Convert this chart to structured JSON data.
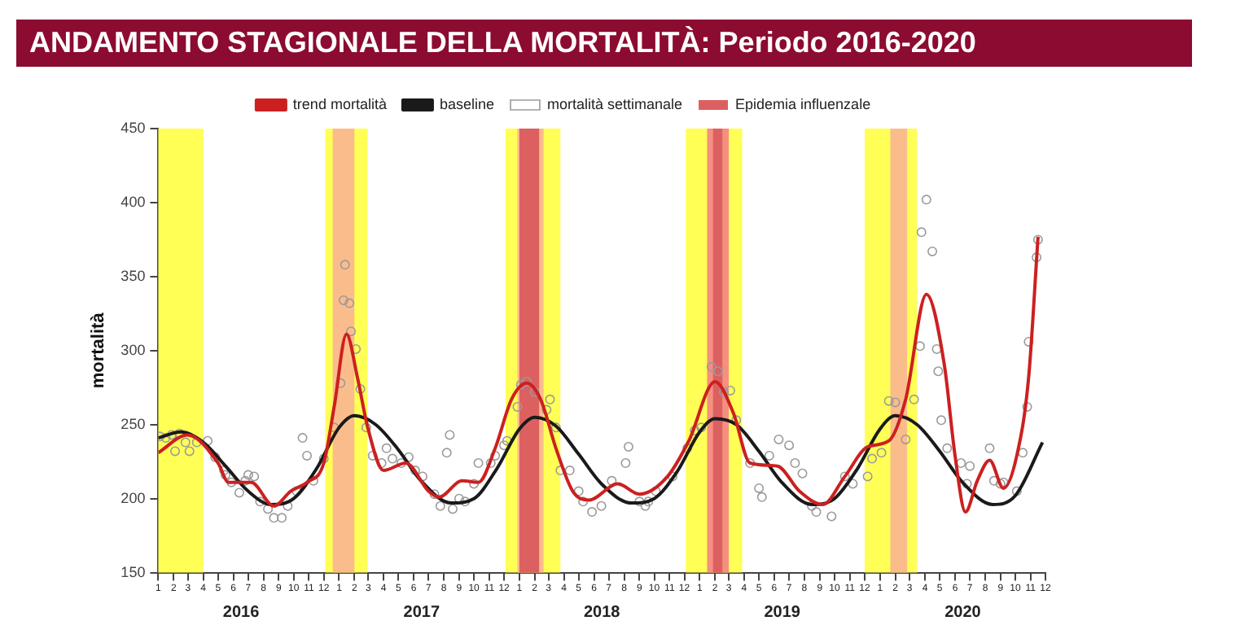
{
  "chart_data": {
    "type": "line",
    "title": "ANDAMENTO STAGIONALE DELLA MORTALITÀ: Periodo 2016-2020",
    "ylabel": "mortalità",
    "xlim": [
      "2016-01",
      "2020-12"
    ],
    "xticks": [
      {
        "value": "2016-01",
        "label": "1"
      },
      {
        "value": "2016-02",
        "label": "2"
      },
      {
        "value": "2016-03",
        "label": "3"
      },
      {
        "value": "2016-04",
        "label": "4"
      },
      {
        "value": "2016-05",
        "label": "5"
      },
      {
        "value": "2016-06",
        "label": "6"
      },
      {
        "value": "2016-07",
        "label": "7"
      },
      {
        "value": "2016-08",
        "label": "8"
      },
      {
        "value": "2016-09",
        "label": "9"
      },
      {
        "value": "2016-10",
        "label": "10"
      },
      {
        "value": "2016-11",
        "label": "11"
      },
      {
        "value": "2016-12",
        "label": "12"
      },
      {
        "value": "2017-01",
        "label": "1"
      },
      {
        "value": "2017-02",
        "label": "2"
      },
      {
        "value": "2017-03",
        "label": "3"
      },
      {
        "value": "2017-04",
        "label": "4"
      },
      {
        "value": "2017-05",
        "label": "5"
      },
      {
        "value": "2017-06",
        "label": "6"
      },
      {
        "value": "2017-07",
        "label": "7"
      },
      {
        "value": "2017-08",
        "label": "8"
      },
      {
        "value": "2017-09",
        "label": "9"
      },
      {
        "value": "2017-10",
        "label": "10"
      },
      {
        "value": "2017-11",
        "label": "11"
      },
      {
        "value": "2017-12",
        "label": "12"
      },
      {
        "value": "2018-01",
        "label": "1"
      },
      {
        "value": "2018-02",
        "label": "2"
      },
      {
        "value": "2018-03",
        "label": "3"
      },
      {
        "value": "2018-04",
        "label": "4"
      },
      {
        "value": "2018-05",
        "label": "5"
      },
      {
        "value": "2018-06",
        "label": "6"
      },
      {
        "value": "2018-07",
        "label": "7"
      },
      {
        "value": "2018-08",
        "label": "8"
      },
      {
        "value": "2018-09",
        "label": "9"
      },
      {
        "value": "2018-10",
        "label": "10"
      },
      {
        "value": "2018-11",
        "label": "11"
      },
      {
        "value": "2018-12",
        "label": "12"
      },
      {
        "value": "2019-01",
        "label": "1"
      },
      {
        "value": "2019-02",
        "label": "2"
      },
      {
        "value": "2019-03",
        "label": "3"
      },
      {
        "value": "2019-04",
        "label": "4"
      },
      {
        "value": "2019-05",
        "label": "5"
      },
      {
        "value": "2019-06",
        "label": "6"
      },
      {
        "value": "2019-07",
        "label": "7"
      },
      {
        "value": "2019-08",
        "label": "8"
      },
      {
        "value": "2019-09",
        "label": "9"
      },
      {
        "value": "2019-10",
        "label": "10"
      },
      {
        "value": "2019-11",
        "label": "11"
      },
      {
        "value": "2019-12",
        "label": "12"
      },
      {
        "value": "2020-01",
        "label": "1"
      },
      {
        "value": "2020-02",
        "label": "2"
      },
      {
        "value": "2020-03",
        "label": "3"
      },
      {
        "value": "2020-04",
        "label": "4"
      },
      {
        "value": "2020-05",
        "label": "5"
      },
      {
        "value": "2020-06",
        "label": "6"
      },
      {
        "value": "2020-07",
        "label": "7"
      },
      {
        "value": "2020-08",
        "label": "8"
      },
      {
        "value": "2020-09",
        "label": "9"
      },
      {
        "value": "2020-10",
        "label": "10"
      },
      {
        "value": "2020-11",
        "label": "11"
      },
      {
        "value": "2020-12",
        "label": "12"
      }
    ],
    "ylim": [
      150,
      450
    ],
    "yticks": [
      150,
      200,
      250,
      300,
      350,
      400,
      450
    ],
    "grid": false,
    "legend": "top",
    "annotations": [
      "2016",
      "2017",
      "2018",
      "2019",
      "2020"
    ],
    "bands": [
      {
        "axis": "x",
        "from": "2016-01-01",
        "to": "2016-04-01",
        "color": "#ffff55"
      },
      {
        "axis": "x",
        "from": "2016-12-04",
        "to": "2017-02-28",
        "color": "#ffff55"
      },
      {
        "axis": "x",
        "from": "2017-12-04",
        "to": "2018-03-25",
        "color": "#ffff55"
      },
      {
        "axis": "x",
        "from": "2018-12-04",
        "to": "2019-03-28",
        "color": "#ffff55"
      },
      {
        "axis": "x",
        "from": "2019-12-01",
        "to": "2020-03-16",
        "color": "#ffff55"
      },
      {
        "axis": "x",
        "from": "2016-12-19",
        "to": "2017-02-01",
        "color": "#fbbc8c"
      },
      {
        "axis": "x",
        "from": "2017-12-28",
        "to": "2018-02-19",
        "color": "#fbbc8c"
      },
      {
        "axis": "x",
        "from": "2019-01-16",
        "to": "2019-03-01",
        "color": "#f59080"
      },
      {
        "axis": "x",
        "from": "2020-01-22",
        "to": "2020-02-25",
        "color": "#fbbc8c"
      },
      {
        "axis": "x",
        "from": "2018-01-01",
        "to": "2018-02-10",
        "color": "#dd6060",
        "label": "Epidemia influenzale"
      },
      {
        "axis": "x",
        "from": "2019-01-28",
        "to": "2019-02-16",
        "color": "#dd6060"
      }
    ],
    "series": [
      {
        "name": "trend mortalità",
        "color": "#cc2020",
        "marker": "none",
        "line_style": "solid",
        "x": [
          "2016-01-01",
          "2016-02-29",
          "2016-05-01",
          "2016-05-22",
          "2016-07-07",
          "2016-08-22",
          "2016-09-25",
          "2016-10-28",
          "2016-12-01",
          "2016-12-22",
          "2017-01-16",
          "2017-02-07",
          "2017-02-28",
          "2017-04-01",
          "2017-05-16",
          "2017-07-01",
          "2017-07-22",
          "2017-09-07",
          "2017-10-10",
          "2017-11-13",
          "2017-12-16",
          "2018-01-16",
          "2018-02-13",
          "2018-03-16",
          "2018-04-19",
          "2018-05-22",
          "2018-07-19",
          "2018-09-01",
          "2018-10-28",
          "2018-12-10",
          "2019-02-01",
          "2019-03-10",
          "2019-04-13",
          "2019-06-07",
          "2019-07-22",
          "2019-09-07",
          "2019-10-22",
          "2019-12-07",
          "2020-01-19",
          "2020-02-22",
          "2020-04-04",
          "2020-05-10",
          "2020-06-01",
          "2020-06-22",
          "2020-07-16",
          "2020-08-10",
          "2020-09-07",
          "2020-10-04",
          "2020-10-28",
          "2020-11-16"
        ],
        "values": [
          231,
          243,
          224,
          211,
          211,
          195,
          205,
          211,
          224,
          262,
          311,
          282,
          248,
          219,
          224,
          205,
          201,
          212,
          211,
          234,
          267,
          278,
          267,
          234,
          205,
          199,
          210,
          203,
          215,
          239,
          279,
          258,
          224,
          222,
          205,
          196,
          215,
          235,
          239,
          267,
          338,
          291,
          229,
          191,
          212,
          226,
          207,
          229,
          282,
          377
        ]
      },
      {
        "name": "baseline",
        "color": "#1a1a1a",
        "marker": "none",
        "line_style": "solid",
        "x": [
          "2016-01-01",
          "2016-02-16",
          "2016-04-01",
          "2016-05-16",
          "2016-07-01",
          "2016-08-16",
          "2016-10-01",
          "2016-11-16",
          "2017-01-01",
          "2017-02-01",
          "2017-03-16",
          "2017-05-01",
          "2017-06-16",
          "2017-08-16",
          "2017-10-01",
          "2017-11-16",
          "2018-01-01",
          "2018-02-01",
          "2018-03-16",
          "2018-05-01",
          "2018-06-16",
          "2018-08-16",
          "2018-10-01",
          "2018-11-16",
          "2019-01-01",
          "2019-02-01",
          "2019-03-16",
          "2019-05-01",
          "2019-06-16",
          "2019-08-16",
          "2019-10-01",
          "2019-11-16",
          "2020-01-01",
          "2020-02-01",
          "2020-03-16",
          "2020-05-01",
          "2020-06-16",
          "2020-08-16",
          "2020-10-01",
          "2020-11-25"
        ],
        "values": [
          241,
          245,
          238,
          222,
          205,
          196,
          200,
          220,
          248,
          256,
          250,
          233,
          212,
          197,
          200,
          220,
          247,
          255,
          249,
          230,
          210,
          197,
          200,
          218,
          245,
          254,
          250,
          232,
          211,
          196,
          200,
          220,
          247,
          256,
          250,
          232,
          211,
          196,
          202,
          238
        ]
      },
      {
        "name": "mortalità settimanale",
        "type": "scatter",
        "color": "#9a9a9a",
        "marker": "circle",
        "x": [
          "2016-01-04",
          "2016-01-16",
          "2016-01-28",
          "2016-02-04",
          "2016-02-13",
          "2016-02-25",
          "2016-03-04",
          "2016-03-19",
          "2016-04-10",
          "2016-04-25",
          "2016-05-13",
          "2016-05-16",
          "2016-05-28",
          "2016-06-13",
          "2016-06-25",
          "2016-07-01",
          "2016-07-13",
          "2016-07-25",
          "2016-08-10",
          "2016-08-22",
          "2016-09-07",
          "2016-09-19",
          "2016-10-07",
          "2016-10-19",
          "2016-10-28",
          "2016-11-10",
          "2016-12-01",
          "2016-12-22",
          "2017-01-04",
          "2017-01-10",
          "2017-01-13",
          "2017-01-22",
          "2017-01-25",
          "2017-02-04",
          "2017-02-13",
          "2017-02-25",
          "2017-03-10",
          "2017-03-28",
          "2017-04-07",
          "2017-04-19",
          "2017-05-07",
          "2017-05-22",
          "2017-06-04",
          "2017-06-19",
          "2017-07-13",
          "2017-07-25",
          "2017-08-07",
          "2017-08-13",
          "2017-08-19",
          "2017-09-01",
          "2017-09-13",
          "2017-10-01",
          "2017-10-10",
          "2017-11-04",
          "2017-11-13",
          "2017-12-01",
          "2017-12-07",
          "2017-12-28",
          "2018-01-04",
          "2018-01-16",
          "2018-02-01",
          "2018-02-25",
          "2018-03-04",
          "2018-03-16",
          "2018-03-25",
          "2018-04-13",
          "2018-05-01",
          "2018-05-10",
          "2018-05-28",
          "2018-06-16",
          "2018-07-07",
          "2018-08-04",
          "2018-08-10",
          "2018-09-01",
          "2018-09-13",
          "2018-09-19",
          "2018-10-04",
          "2018-11-07",
          "2018-12-07",
          "2018-12-22",
          "2019-01-04",
          "2019-01-25",
          "2019-02-07",
          "2019-02-19",
          "2019-03-04",
          "2019-03-16",
          "2019-04-13",
          "2019-05-01",
          "2019-05-07",
          "2019-05-22",
          "2019-06-10",
          "2019-07-01",
          "2019-07-13",
          "2019-07-28",
          "2019-08-16",
          "2019-08-25",
          "2019-09-25",
          "2019-10-22",
          "2019-11-07",
          "2019-12-07",
          "2019-12-16",
          "2020-01-04",
          "2020-01-19",
          "2020-02-01",
          "2020-02-22",
          "2020-03-10",
          "2020-03-22",
          "2020-03-25",
          "2020-04-04",
          "2020-04-16",
          "2020-04-25",
          "2020-04-28",
          "2020-05-04",
          "2020-05-16",
          "2020-06-13",
          "2020-06-25",
          "2020-07-01",
          "2020-08-10",
          "2020-08-19",
          "2020-09-01",
          "2020-09-07",
          "2020-10-04",
          "2020-10-16",
          "2020-10-25",
          "2020-10-28",
          "2020-11-13",
          "2020-11-16"
        ],
        "values": [
          242,
          241,
          243,
          232,
          244,
          238,
          232,
          238,
          239,
          228,
          219,
          216,
          211,
          204,
          212,
          216,
          215,
          198,
          193,
          187,
          187,
          195,
          205,
          241,
          229,
          212,
          227,
          248,
          278,
          334,
          358,
          332,
          313,
          301,
          274,
          248,
          229,
          224,
          234,
          227,
          224,
          228,
          219,
          215,
          203,
          195,
          231,
          243,
          193,
          200,
          198,
          210,
          224,
          224,
          229,
          236,
          239,
          262,
          277,
          279,
          272,
          260,
          267,
          248,
          219,
          219,
          205,
          198,
          191,
          195,
          212,
          224,
          235,
          198,
          195,
          198,
          205,
          215,
          234,
          246,
          248,
          289,
          286,
          272,
          273,
          253,
          224,
          207,
          201,
          229,
          240,
          236,
          224,
          217,
          195,
          191,
          188,
          215,
          210,
          215,
          227,
          231,
          266,
          265,
          240,
          267,
          303,
          380,
          402,
          367,
          301,
          286,
          253,
          234,
          224,
          210,
          222,
          234,
          212,
          210,
          211,
          205,
          231,
          262,
          306,
          363,
          375
        ]
      }
    ]
  }
}
